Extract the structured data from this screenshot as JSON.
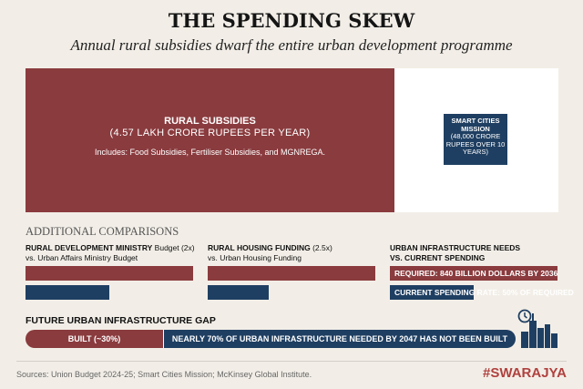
{
  "header": {
    "title": "THE SPENDING SKEW",
    "subtitle": "Annual rural subsidies dwarf the entire urban development programme"
  },
  "main": {
    "rural": {
      "title": "RURAL SUBSIDIES",
      "amount": "(4.57 LAKH CRORE RUPEES PER YEAR)",
      "includes": "Includes: Food Subsidies, Fertiliser Subsidies, and MGNREGA."
    },
    "smart_cities": {
      "title": "SMART CITIES MISSION",
      "amount": "(48,000 CRORE RUPEES OVER 10 YEARS)"
    }
  },
  "comparisons": {
    "heading": "ADDITIONAL COMPARISONS",
    "items": [
      {
        "bold": "RURAL DEVELOPMENT MINISTRY",
        "rest": " Budget (2x)",
        "sub": "vs. Urban Affairs Ministry Budget",
        "ratio": 2
      },
      {
        "bold": "RURAL HOUSING FUNDING",
        "rest": " (2.5x)",
        "sub": "vs. Urban Housing Funding",
        "ratio": 2.5
      },
      {
        "bold": "URBAN INFRASTRUCTURE NEEDS VS. CURRENT SPENDING",
        "required": "REQUIRED: 840 BILLION DOLLARS BY 2036",
        "current": "CURRENT SPENDING RATE: 50% OF REQUIRED",
        "current_percent": 50
      }
    ]
  },
  "gap": {
    "title": "FUTURE URBAN INFRASTRUCTURE GAP",
    "built": "BUILT (~30%)",
    "built_percent": 30,
    "not_built": "NEARLY 70% OF URBAN INFRASTRUCTURE NEEDED BY 2047 HAS NOT BEEN BUILT"
  },
  "footer": {
    "sources": "Sources: Union Budget 2024-25; Smart Cities Mission; McKinsey Global Institute.",
    "brand": "#SWARAJYA"
  },
  "colors": {
    "rural": "#8a3b3e",
    "urban": "#1f3f62",
    "brand": "#b0413e"
  }
}
